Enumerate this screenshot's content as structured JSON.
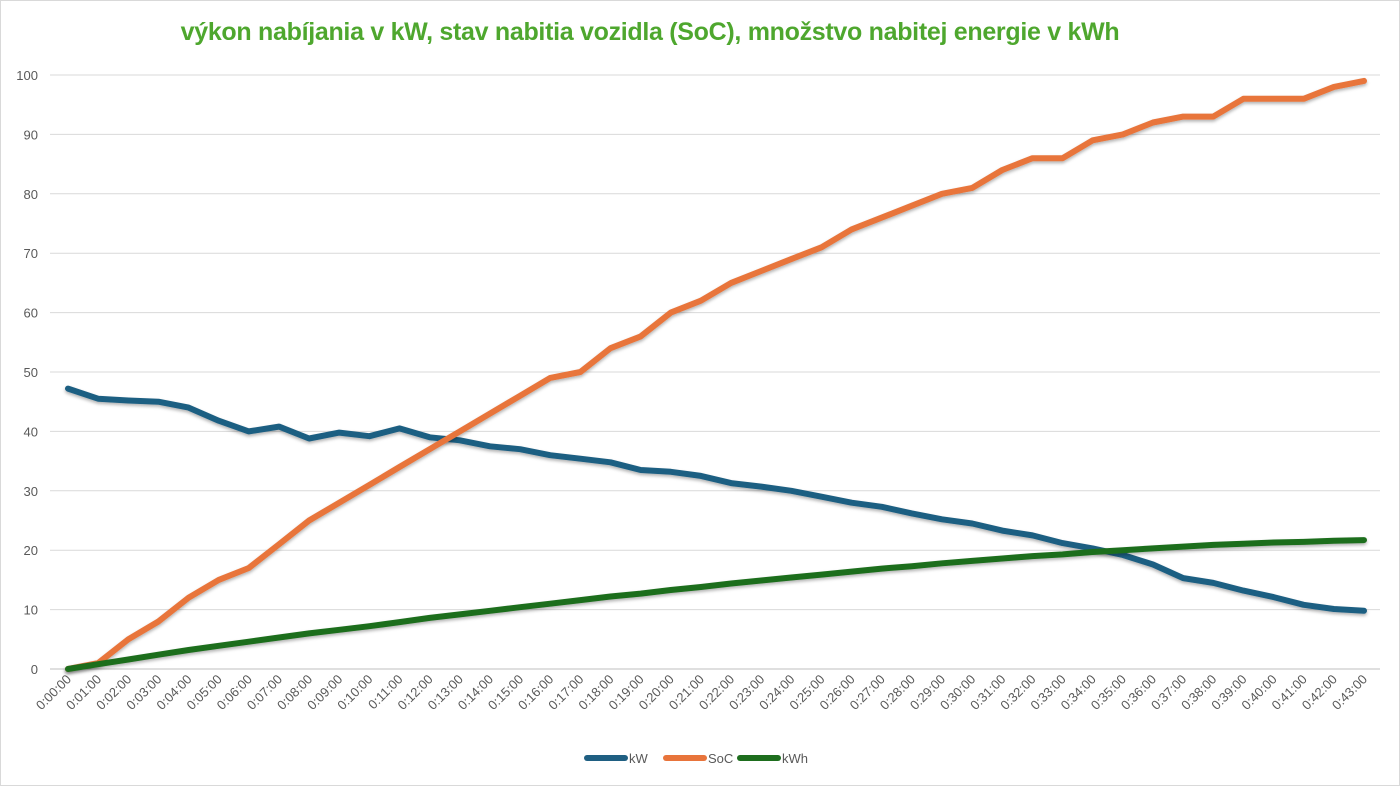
{
  "chart_data": {
    "type": "line",
    "title": "výkon nabíjania v kW, stav nabitia vozidla (SoC), množstvo nabitej energie v kWh",
    "xlabel": "",
    "ylabel": "",
    "ylim": [
      0,
      100
    ],
    "yticks": [
      0,
      10,
      20,
      30,
      40,
      50,
      60,
      70,
      80,
      90,
      100
    ],
    "grid": true,
    "legend": "bottom",
    "categories": [
      "0:00:00",
      "0:01:00",
      "0:02:00",
      "0:03:00",
      "0:04:00",
      "0:05:00",
      "0:06:00",
      "0:07:00",
      "0:08:00",
      "0:09:00",
      "0:10:00",
      "0:11:00",
      "0:12:00",
      "0:13:00",
      "0:14:00",
      "0:15:00",
      "0:16:00",
      "0:17:00",
      "0:18:00",
      "0:19:00",
      "0:20:00",
      "0:21:00",
      "0:22:00",
      "0:23:00",
      "0:24:00",
      "0:25:00",
      "0:26:00",
      "0:27:00",
      "0:28:00",
      "0:29:00",
      "0:30:00",
      "0:31:00",
      "0:32:00",
      "0:33:00",
      "0:34:00",
      "0:35:00",
      "0:36:00",
      "0:37:00",
      "0:38:00",
      "0:39:00",
      "0:40:00",
      "0:41:00",
      "0:42:00",
      "0:43:00"
    ],
    "series": [
      {
        "name": "kW",
        "color": "#1f5f82",
        "values": [
          47.2,
          45.5,
          45.2,
          45.0,
          44.0,
          41.8,
          40.0,
          40.8,
          38.8,
          39.8,
          39.2,
          40.5,
          39.0,
          38.5,
          37.5,
          37.0,
          36.0,
          35.4,
          34.8,
          33.5,
          33.2,
          32.5,
          31.3,
          30.7,
          30.0,
          29.0,
          28.0,
          27.3,
          26.2,
          25.2,
          24.5,
          23.3,
          22.5,
          21.2,
          20.3,
          19.2,
          17.6,
          15.3,
          14.5,
          13.2,
          12.1,
          10.8,
          10.1,
          9.8
        ]
      },
      {
        "name": "SoC",
        "color": "#e8743b",
        "values": [
          0,
          1,
          5,
          8,
          12,
          15,
          17,
          21,
          25,
          28,
          31,
          34,
          37,
          40,
          43,
          46,
          49,
          50,
          54,
          56,
          60,
          62,
          65,
          67,
          69,
          71,
          74,
          76,
          78,
          80,
          81,
          84,
          86,
          86,
          89,
          90,
          92,
          93,
          93,
          96,
          96,
          96,
          98,
          99
        ]
      },
      {
        "name": "kWh",
        "color": "#1e6e1e",
        "values": [
          0,
          0.8,
          1.6,
          2.4,
          3.2,
          3.9,
          4.6,
          5.3,
          6.0,
          6.6,
          7.2,
          7.9,
          8.6,
          9.2,
          9.8,
          10.4,
          11.0,
          11.6,
          12.2,
          12.7,
          13.3,
          13.8,
          14.4,
          14.9,
          15.4,
          15.9,
          16.4,
          16.9,
          17.3,
          17.8,
          18.2,
          18.6,
          19.0,
          19.3,
          19.7,
          20.0,
          20.3,
          20.6,
          20.9,
          21.1,
          21.3,
          21.4,
          21.6,
          21.7
        ]
      }
    ]
  }
}
